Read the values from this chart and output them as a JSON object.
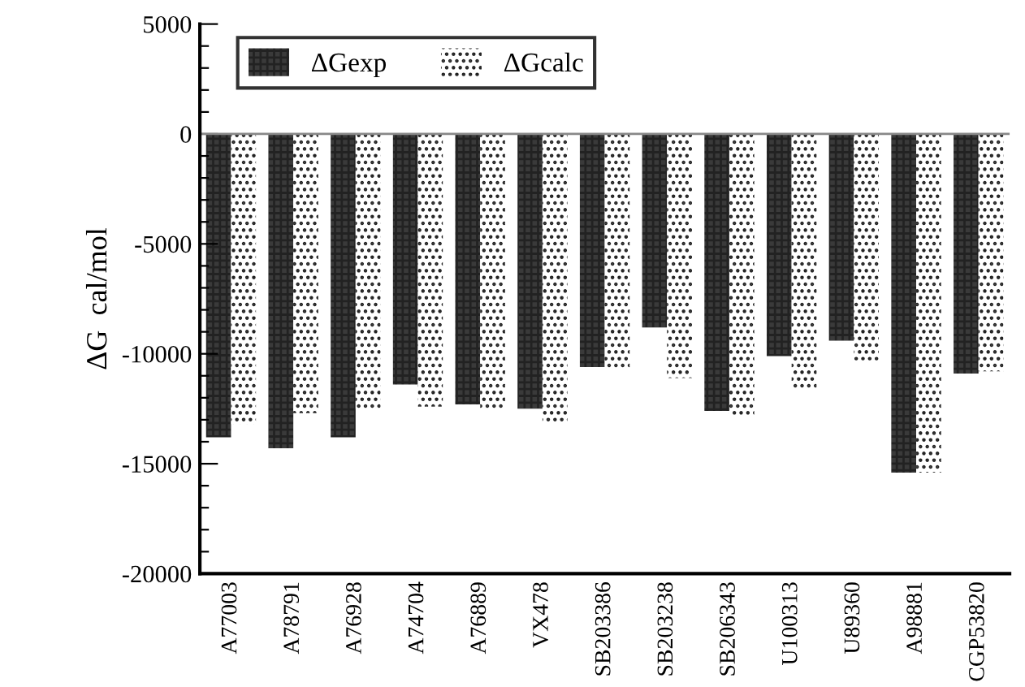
{
  "chart_data": {
    "type": "bar",
    "ylabel": "ΔG  cal/mol",
    "categories": [
      "A77003",
      "A78791",
      "A76928",
      "A74704",
      "A76889",
      "VX478",
      "SB203386",
      "SB203238",
      "SB206343",
      "U100313",
      "U89360",
      "A98881",
      "CGP53820"
    ],
    "series": [
      {
        "name": "ΔGexp",
        "color": "#3a3a3a",
        "values": [
          -13800,
          -14300,
          -13800,
          -11400,
          -12300,
          -12500,
          -10600,
          -8800,
          -12600,
          -10100,
          -9400,
          -15400,
          -10900
        ]
      },
      {
        "name": "ΔGcalc",
        "color": "#ffffff",
        "values": [
          -13200,
          -12700,
          -12500,
          -12400,
          -12500,
          -13100,
          -10700,
          -11100,
          -12800,
          -11600,
          -10300,
          -15400,
          -10800
        ]
      }
    ],
    "ylim": [
      -20000,
      5000
    ],
    "yticks": [
      5000,
      {
        "value": 4000,
        "label": null
      },
      {
        "value": 3000,
        "label": null
      },
      {
        "value": 2000,
        "label": null
      },
      {
        "value": 1000,
        "label": null
      },
      0,
      {
        "value": -1000,
        "label": null
      },
      {
        "value": -2000,
        "label": null
      },
      {
        "value": -3000,
        "label": null
      },
      {
        "value": -4000,
        "label": null
      },
      -5000,
      {
        "value": -6000,
        "label": null
      },
      {
        "value": -7000,
        "label": null
      },
      {
        "value": -8000,
        "label": null
      },
      {
        "value": -9000,
        "label": null
      },
      -10000,
      {
        "value": -11000,
        "label": null
      },
      {
        "value": -12000,
        "label": null
      },
      {
        "value": -13000,
        "label": null
      },
      {
        "value": -14000,
        "label": null
      },
      -15000,
      {
        "value": -16000,
        "label": null
      },
      {
        "value": -17000,
        "label": null
      },
      {
        "value": -18000,
        "label": null
      },
      {
        "value": -19000,
        "label": null
      },
      -20000
    ],
    "ref_lines": [
      {
        "axis": "y",
        "value": 0,
        "color": "#888888"
      }
    ],
    "grid": false,
    "legend": "top left"
  }
}
